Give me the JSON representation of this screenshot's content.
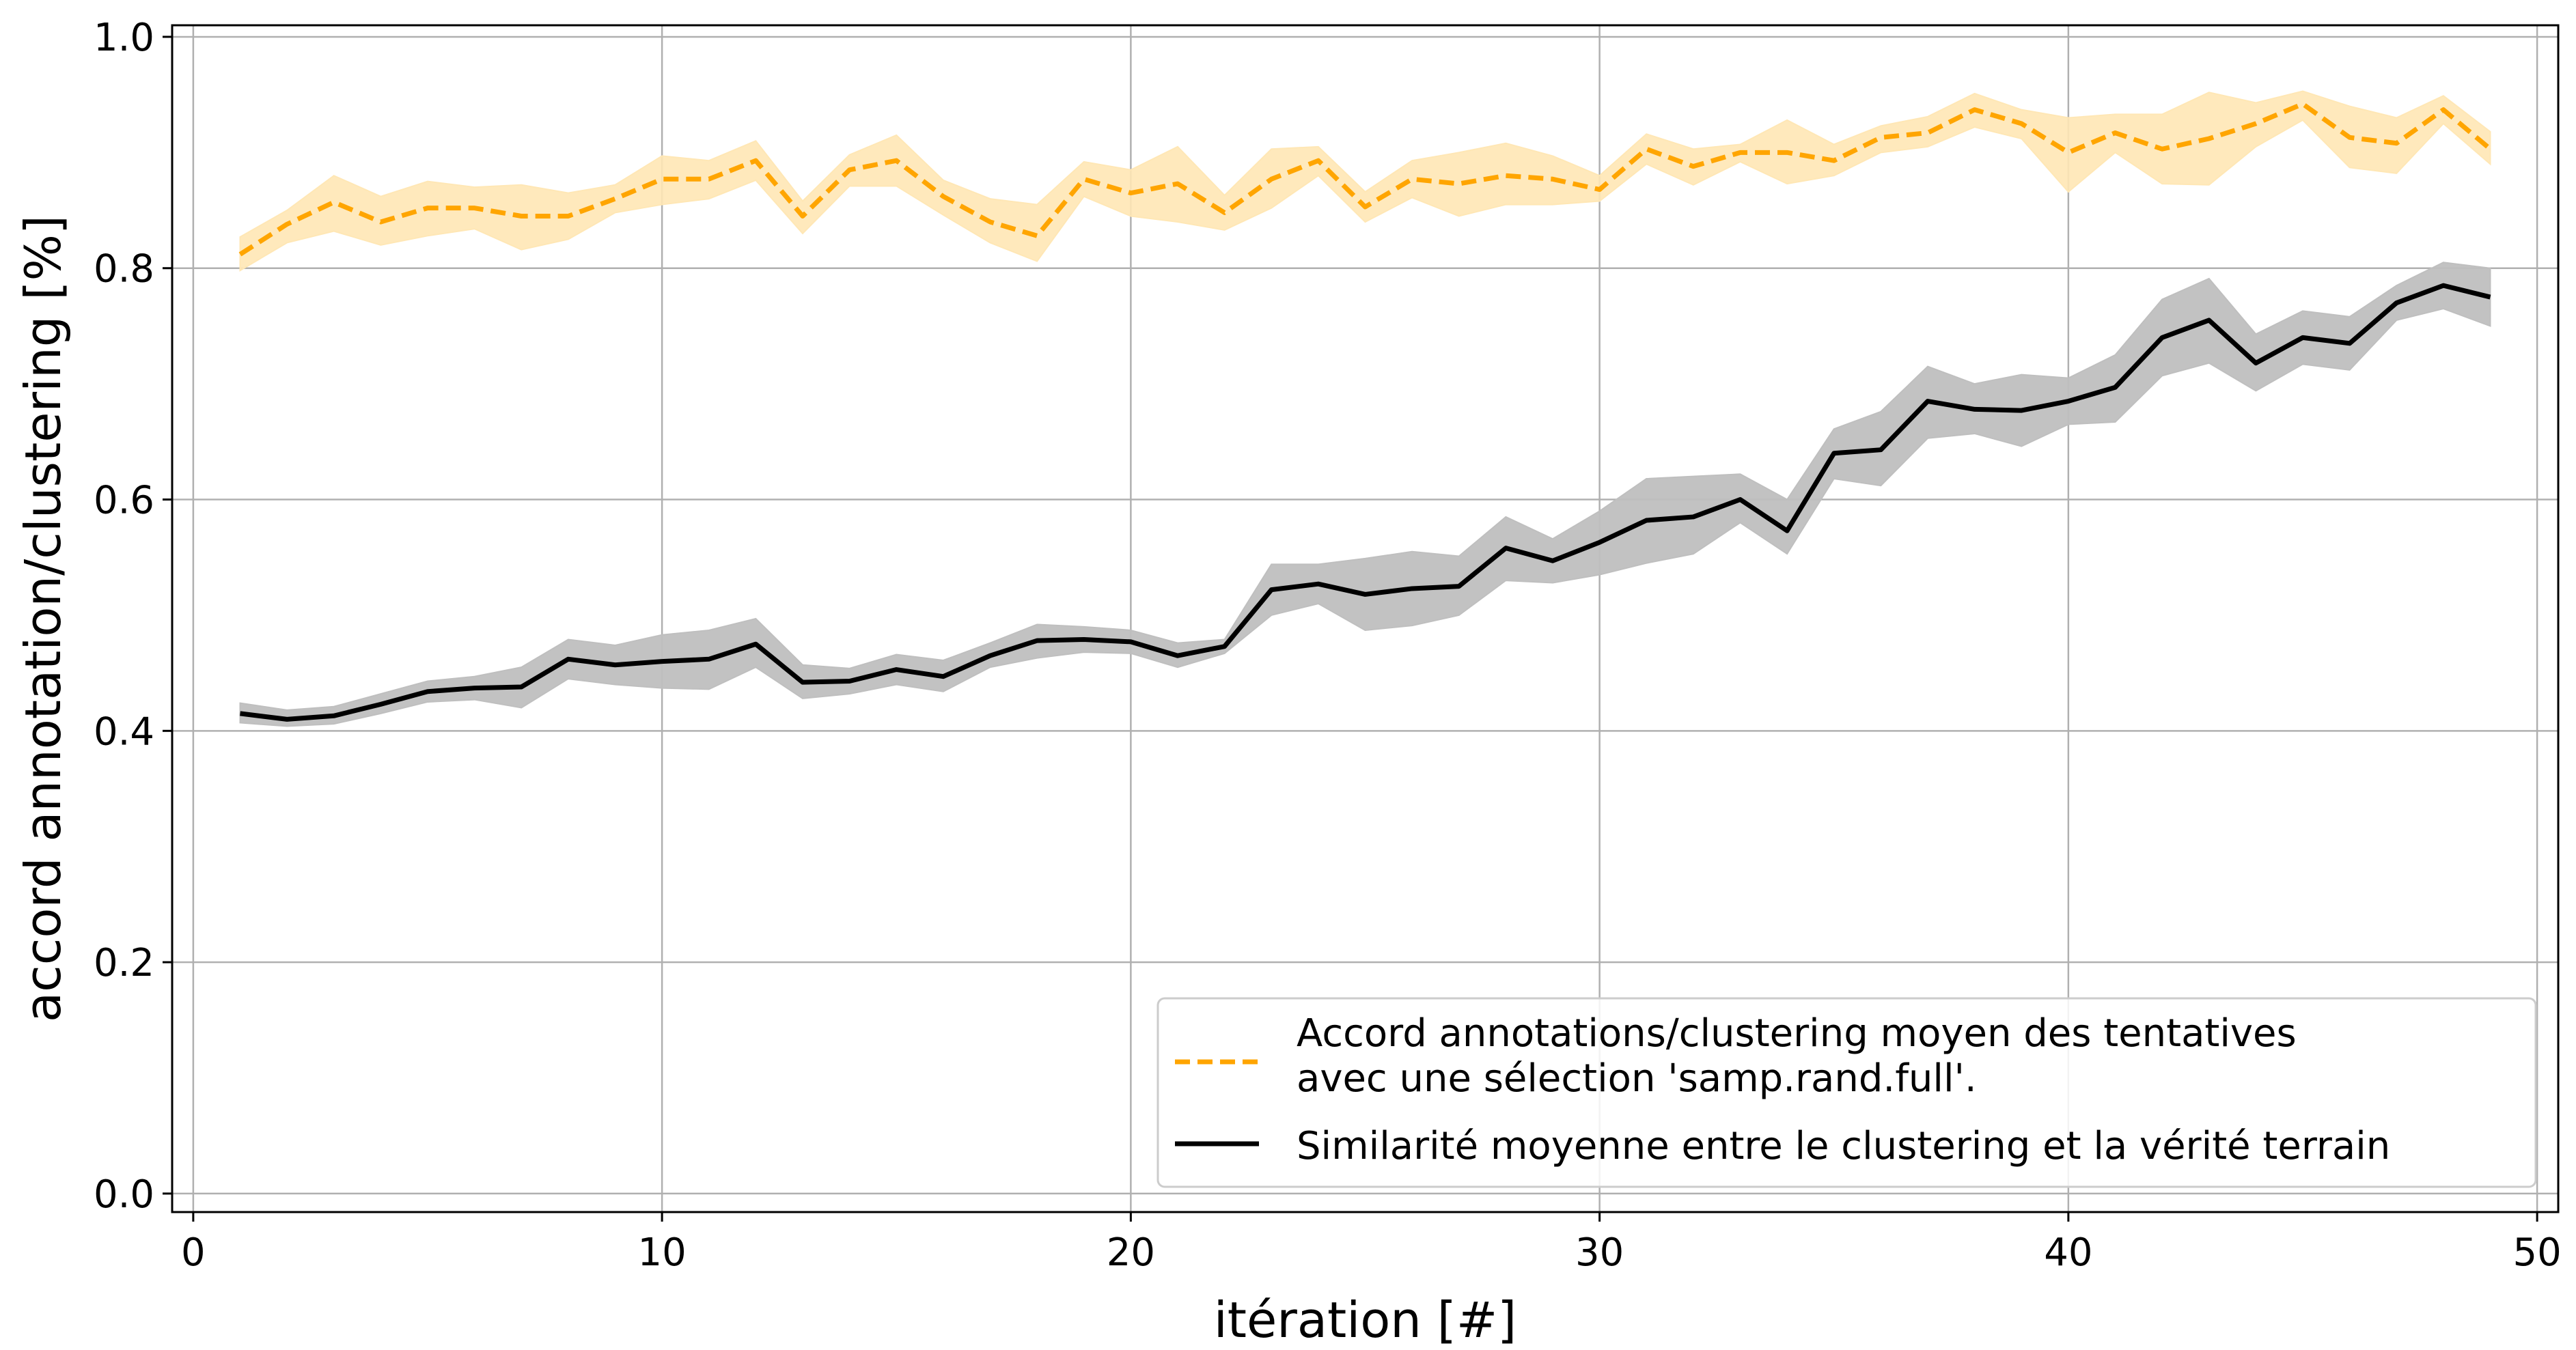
{
  "chart_data": {
    "type": "line",
    "xlabel": "itération [#]",
    "ylabel": "accord annotation/clustering [%]",
    "xlim": [
      -0.45,
      50.45
    ],
    "ylim": [
      -0.016,
      1.01
    ],
    "xticks": [
      0,
      10,
      20,
      30,
      40,
      50
    ],
    "yticks": [
      0.0,
      0.2,
      0.4,
      0.6,
      0.8,
      1.0
    ],
    "xtick_labels": [
      "0",
      "10",
      "20",
      "30",
      "40",
      "50"
    ],
    "ytick_labels": [
      "0.0",
      "0.2",
      "0.4",
      "0.6",
      "0.8",
      "1.0"
    ],
    "grid": true,
    "legend_position": "lower-right",
    "x": [
      1,
      2,
      3,
      4,
      5,
      6,
      7,
      8,
      9,
      10,
      11,
      12,
      13,
      14,
      15,
      16,
      17,
      18,
      19,
      20,
      21,
      22,
      23,
      24,
      25,
      26,
      27,
      28,
      29,
      30,
      31,
      32,
      33,
      34,
      35,
      36,
      37,
      38,
      39,
      40,
      41,
      42,
      43,
      44,
      45,
      46,
      47,
      48,
      49
    ],
    "series": [
      {
        "name": "Accord annotations/clustering moyen des tentatives avec une sélection 'samp.rand.full'.",
        "legend_lines": [
          "Accord annotations/clustering moyen des tentatives",
          "avec une sélection 'samp.rand.full'."
        ],
        "color": "#FFA500",
        "band_color": "#FFE7B5",
        "style": "dashed",
        "values": [
          0.812,
          0.838,
          0.857,
          0.84,
          0.852,
          0.852,
          0.845,
          0.845,
          0.86,
          0.877,
          0.877,
          0.893,
          0.845,
          0.885,
          0.893,
          0.862,
          0.84,
          0.828,
          0.877,
          0.865,
          0.873,
          0.848,
          0.877,
          0.893,
          0.853,
          0.877,
          0.873,
          0.88,
          0.877,
          0.868,
          0.903,
          0.888,
          0.9,
          0.9,
          0.893,
          0.913,
          0.917,
          0.937,
          0.925,
          0.9,
          0.917,
          0.903,
          0.912,
          0.925,
          0.942,
          0.913,
          0.908,
          0.937,
          0.903
        ],
        "lower": [
          0.798,
          0.822,
          0.832,
          0.82,
          0.828,
          0.834,
          0.816,
          0.825,
          0.848,
          0.855,
          0.86,
          0.876,
          0.83,
          0.871,
          0.871,
          0.846,
          0.822,
          0.806,
          0.862,
          0.845,
          0.84,
          0.833,
          0.852,
          0.88,
          0.84,
          0.861,
          0.845,
          0.855,
          0.855,
          0.858,
          0.89,
          0.872,
          0.892,
          0.873,
          0.88,
          0.9,
          0.905,
          0.922,
          0.912,
          0.866,
          0.9,
          0.873,
          0.872,
          0.905,
          0.928,
          0.887,
          0.882,
          0.925,
          0.89
        ],
        "upper": [
          0.827,
          0.85,
          0.88,
          0.862,
          0.875,
          0.87,
          0.872,
          0.865,
          0.872,
          0.897,
          0.893,
          0.91,
          0.858,
          0.898,
          0.915,
          0.876,
          0.86,
          0.855,
          0.892,
          0.885,
          0.905,
          0.863,
          0.903,
          0.905,
          0.866,
          0.893,
          0.9,
          0.908,
          0.897,
          0.88,
          0.916,
          0.903,
          0.907,
          0.928,
          0.907,
          0.923,
          0.931,
          0.951,
          0.937,
          0.93,
          0.933,
          0.933,
          0.952,
          0.943,
          0.953,
          0.94,
          0.93,
          0.949,
          0.918
        ]
      },
      {
        "name": "Similarité moyenne entre le clustering et la vérité terrain",
        "legend_lines": [
          "Similarité moyenne entre le clustering et la vérité terrain"
        ],
        "color": "#000000",
        "band_color": "#BFBFBF",
        "style": "solid",
        "values": [
          0.415,
          0.41,
          0.413,
          0.423,
          0.434,
          0.437,
          0.438,
          0.462,
          0.457,
          0.46,
          0.462,
          0.475,
          0.442,
          0.443,
          0.453,
          0.447,
          0.465,
          0.478,
          0.479,
          0.477,
          0.465,
          0.473,
          0.522,
          0.527,
          0.518,
          0.523,
          0.525,
          0.558,
          0.547,
          0.563,
          0.582,
          0.585,
          0.6,
          0.573,
          0.64,
          0.643,
          0.685,
          0.678,
          0.677,
          0.685,
          0.697,
          0.74,
          0.755,
          0.718,
          0.74,
          0.735,
          0.77,
          0.785,
          0.775
        ],
        "lower": [
          0.407,
          0.404,
          0.406,
          0.415,
          0.425,
          0.427,
          0.42,
          0.445,
          0.44,
          0.437,
          0.436,
          0.455,
          0.428,
          0.432,
          0.44,
          0.434,
          0.455,
          0.463,
          0.468,
          0.467,
          0.455,
          0.467,
          0.5,
          0.51,
          0.487,
          0.491,
          0.5,
          0.53,
          0.528,
          0.535,
          0.545,
          0.553,
          0.58,
          0.553,
          0.618,
          0.612,
          0.653,
          0.657,
          0.646,
          0.665,
          0.667,
          0.707,
          0.718,
          0.694,
          0.717,
          0.712,
          0.755,
          0.765,
          0.75
        ],
        "upper": [
          0.424,
          0.418,
          0.421,
          0.432,
          0.443,
          0.447,
          0.455,
          0.479,
          0.474,
          0.483,
          0.487,
          0.497,
          0.457,
          0.454,
          0.466,
          0.461,
          0.476,
          0.492,
          0.49,
          0.487,
          0.476,
          0.479,
          0.544,
          0.544,
          0.549,
          0.555,
          0.551,
          0.585,
          0.566,
          0.59,
          0.618,
          0.62,
          0.622,
          0.6,
          0.661,
          0.676,
          0.715,
          0.7,
          0.708,
          0.705,
          0.725,
          0.773,
          0.791,
          0.743,
          0.763,
          0.758,
          0.785,
          0.805,
          0.8
        ]
      }
    ]
  }
}
